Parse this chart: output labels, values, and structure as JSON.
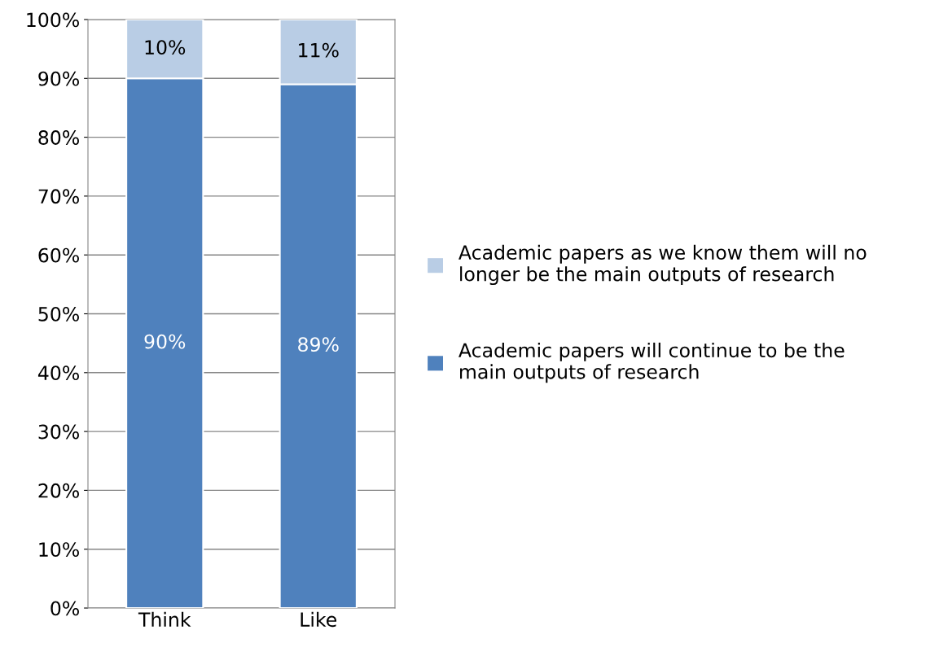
{
  "chart_data": {
    "type": "bar",
    "stacked": true,
    "categories": [
      "Think",
      "Like"
    ],
    "series": [
      {
        "name": "Academic papers will continue to be the main outputs of research",
        "color": "#4f81bd",
        "values": [
          90,
          89
        ],
        "value_labels": [
          "90%",
          "89%"
        ]
      },
      {
        "name": "Academic papers as we know them will no longer be the main outputs of research",
        "color": "#b9cde5",
        "values": [
          10,
          11
        ],
        "value_labels": [
          "10%",
          "11%"
        ]
      }
    ],
    "ylim": [
      0,
      100
    ],
    "yticks": [
      {
        "value": 0,
        "label": "0%"
      },
      {
        "value": 10,
        "label": "10%"
      },
      {
        "value": 20,
        "label": "20%"
      },
      {
        "value": 30,
        "label": "30%"
      },
      {
        "value": 40,
        "label": "40%"
      },
      {
        "value": 50,
        "label": "50%"
      },
      {
        "value": 60,
        "label": "60%"
      },
      {
        "value": 70,
        "label": "70%"
      },
      {
        "value": 80,
        "label": "80%"
      },
      {
        "value": 90,
        "label": "90%"
      },
      {
        "value": 100,
        "label": "100%"
      }
    ],
    "grid": "y",
    "legend": "right"
  }
}
